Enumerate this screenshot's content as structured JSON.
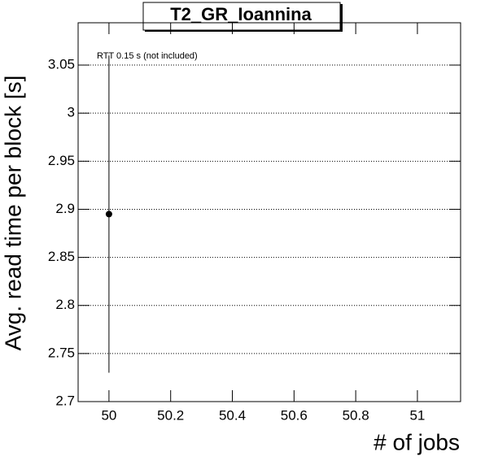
{
  "chart_data": {
    "type": "scatter",
    "title": "T2_GR_Ioannina",
    "x_label": "# of jobs",
    "y_label": "Avg. read time per block [s]",
    "annotation": "RTT 0.15 s (not included)",
    "x": [
      50
    ],
    "values": [
      2.895
    ],
    "errors": [
      0.165
    ],
    "color": "#000000",
    "xlim": [
      49.9,
      51.14
    ],
    "xticks": [
      50,
      50.2,
      50.4,
      50.6,
      50.8,
      51
    ],
    "ylim": [
      2.7,
      3.094
    ],
    "yticks": [
      2.7,
      2.75,
      2.8,
      2.85,
      2.9,
      2.95,
      3,
      3.05
    ],
    "grid": "y"
  }
}
